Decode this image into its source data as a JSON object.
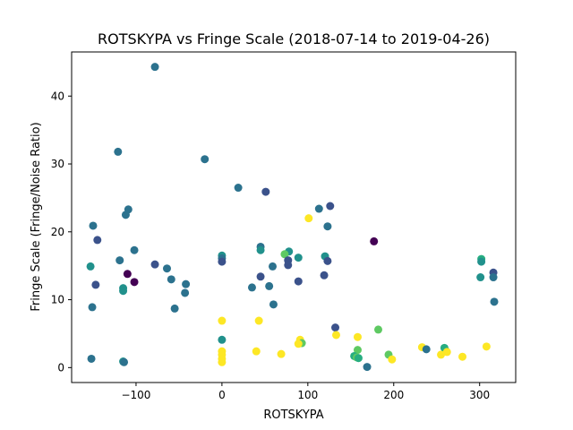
{
  "chart_data": {
    "type": "scatter",
    "title": "ROTSKYPA vs Fringe Scale (2018-07-14 to 2019-04-26)",
    "xlabel": "ROTSKYPA",
    "ylabel": "Fringe Scale (Fringe/Noise Ratio)",
    "xlim": [
      -175,
      342
    ],
    "ylim": [
      -2.2,
      46.5
    ],
    "xticks": [
      -100,
      0,
      100,
      200,
      300
    ],
    "yticks": [
      0,
      10,
      20,
      30,
      40
    ],
    "grid": false,
    "legend": "none",
    "colormap": "viridis",
    "colors": {
      "c1": "#440154",
      "c2": "#3b528b",
      "c3": "#2c728e",
      "c4": "#21918c",
      "c5": "#27ad81",
      "c6": "#5ec962",
      "c7": "#fde725"
    },
    "points": [
      {
        "x": -78,
        "y": 44.3,
        "c": "c3"
      },
      {
        "x": -121,
        "y": 31.8,
        "c": "c3"
      },
      {
        "x": -20,
        "y": 30.7,
        "c": "c3"
      },
      {
        "x": 19,
        "y": 26.5,
        "c": "c3"
      },
      {
        "x": 51,
        "y": 25.9,
        "c": "c2"
      },
      {
        "x": 126,
        "y": 23.8,
        "c": "c2"
      },
      {
        "x": 113,
        "y": 23.4,
        "c": "c3"
      },
      {
        "x": -109,
        "y": 23.3,
        "c": "c3"
      },
      {
        "x": -112,
        "y": 22.5,
        "c": "c3"
      },
      {
        "x": 101,
        "y": 22.0,
        "c": "c7"
      },
      {
        "x": -150,
        "y": 20.9,
        "c": "c3"
      },
      {
        "x": 123,
        "y": 20.8,
        "c": "c3"
      },
      {
        "x": -145,
        "y": 18.8,
        "c": "c2"
      },
      {
        "x": 177,
        "y": 18.6,
        "c": "c1"
      },
      {
        "x": 45,
        "y": 17.8,
        "c": "c3"
      },
      {
        "x": -102,
        "y": 17.3,
        "c": "c3"
      },
      {
        "x": 45,
        "y": 17.3,
        "c": "c4"
      },
      {
        "x": 78,
        "y": 17.1,
        "c": "c4"
      },
      {
        "x": 73,
        "y": 16.7,
        "c": "c6"
      },
      {
        "x": 0,
        "y": 16.5,
        "c": "c4"
      },
      {
        "x": 120,
        "y": 16.4,
        "c": "c4"
      },
      {
        "x": 89,
        "y": 16.2,
        "c": "c4"
      },
      {
        "x": 0,
        "y": 16.1,
        "c": "c3"
      },
      {
        "x": 302,
        "y": 16.0,
        "c": "c5"
      },
      {
        "x": 77,
        "y": 15.8,
        "c": "c2"
      },
      {
        "x": -119,
        "y": 15.8,
        "c": "c3"
      },
      {
        "x": 123,
        "y": 15.7,
        "c": "c2"
      },
      {
        "x": 0,
        "y": 15.6,
        "c": "c2"
      },
      {
        "x": 302,
        "y": 15.6,
        "c": "c4"
      },
      {
        "x": -78,
        "y": 15.2,
        "c": "c2"
      },
      {
        "x": 77,
        "y": 15.1,
        "c": "c2"
      },
      {
        "x": 59,
        "y": 14.9,
        "c": "c3"
      },
      {
        "x": -153,
        "y": 14.9,
        "c": "c4"
      },
      {
        "x": -64,
        "y": 14.6,
        "c": "c3"
      },
      {
        "x": 316,
        "y": 14.0,
        "c": "c2"
      },
      {
        "x": -110,
        "y": 13.8,
        "c": "c1"
      },
      {
        "x": 119,
        "y": 13.6,
        "c": "c2"
      },
      {
        "x": 45,
        "y": 13.4,
        "c": "c2"
      },
      {
        "x": 301,
        "y": 13.3,
        "c": "c4"
      },
      {
        "x": 316,
        "y": 13.3,
        "c": "c3"
      },
      {
        "x": -59,
        "y": 13.0,
        "c": "c3"
      },
      {
        "x": 89,
        "y": 12.7,
        "c": "c2"
      },
      {
        "x": -102,
        "y": 12.6,
        "c": "c1"
      },
      {
        "x": -42,
        "y": 12.3,
        "c": "c3"
      },
      {
        "x": -147,
        "y": 12.2,
        "c": "c2"
      },
      {
        "x": 55,
        "y": 12.0,
        "c": "c3"
      },
      {
        "x": 35,
        "y": 11.8,
        "c": "c3"
      },
      {
        "x": -115,
        "y": 11.7,
        "c": "c4"
      },
      {
        "x": -115,
        "y": 11.3,
        "c": "c4"
      },
      {
        "x": -43,
        "y": 11.0,
        "c": "c3"
      },
      {
        "x": 317,
        "y": 9.7,
        "c": "c3"
      },
      {
        "x": 60,
        "y": 9.3,
        "c": "c3"
      },
      {
        "x": -151,
        "y": 8.9,
        "c": "c3"
      },
      {
        "x": -55,
        "y": 8.7,
        "c": "c3"
      },
      {
        "x": 0,
        "y": 6.9,
        "c": "c7"
      },
      {
        "x": 43,
        "y": 6.9,
        "c": "c7"
      },
      {
        "x": 132,
        "y": 5.9,
        "c": "c2"
      },
      {
        "x": 182,
        "y": 5.6,
        "c": "c6"
      },
      {
        "x": 133,
        "y": 4.8,
        "c": "c7"
      },
      {
        "x": 158,
        "y": 4.5,
        "c": "c7"
      },
      {
        "x": 91,
        "y": 4.1,
        "c": "c7"
      },
      {
        "x": 0,
        "y": 4.1,
        "c": "c4"
      },
      {
        "x": 93,
        "y": 3.6,
        "c": "c6"
      },
      {
        "x": 89,
        "y": 3.5,
        "c": "c7"
      },
      {
        "x": 308,
        "y": 3.1,
        "c": "c7"
      },
      {
        "x": 233,
        "y": 3.0,
        "c": "c7"
      },
      {
        "x": 259,
        "y": 2.9,
        "c": "c5"
      },
      {
        "x": 238,
        "y": 2.7,
        "c": "c3"
      },
      {
        "x": 260,
        "y": 2.6,
        "c": "c5"
      },
      {
        "x": 158,
        "y": 2.6,
        "c": "c6"
      },
      {
        "x": 262,
        "y": 2.3,
        "c": "c7"
      },
      {
        "x": 40,
        "y": 2.4,
        "c": "c7"
      },
      {
        "x": 0,
        "y": 2.4,
        "c": "c7"
      },
      {
        "x": 69,
        "y": 2.0,
        "c": "c7"
      },
      {
        "x": 255,
        "y": 1.9,
        "c": "c7"
      },
      {
        "x": 194,
        "y": 1.9,
        "c": "c6"
      },
      {
        "x": 0,
        "y": 1.9,
        "c": "c7"
      },
      {
        "x": 154,
        "y": 1.7,
        "c": "c5"
      },
      {
        "x": 157,
        "y": 1.5,
        "c": "c6"
      },
      {
        "x": 280,
        "y": 1.6,
        "c": "c7"
      },
      {
        "x": 159,
        "y": 1.4,
        "c": "c5"
      },
      {
        "x": 198,
        "y": 1.2,
        "c": "c7"
      },
      {
        "x": 0,
        "y": 1.3,
        "c": "c7"
      },
      {
        "x": -152,
        "y": 1.3,
        "c": "c3"
      },
      {
        "x": -115,
        "y": 0.9,
        "c": "c4"
      },
      {
        "x": -114,
        "y": 0.8,
        "c": "c3"
      },
      {
        "x": 0,
        "y": 0.8,
        "c": "c7"
      },
      {
        "x": 169,
        "y": 0.1,
        "c": "c3"
      }
    ]
  }
}
